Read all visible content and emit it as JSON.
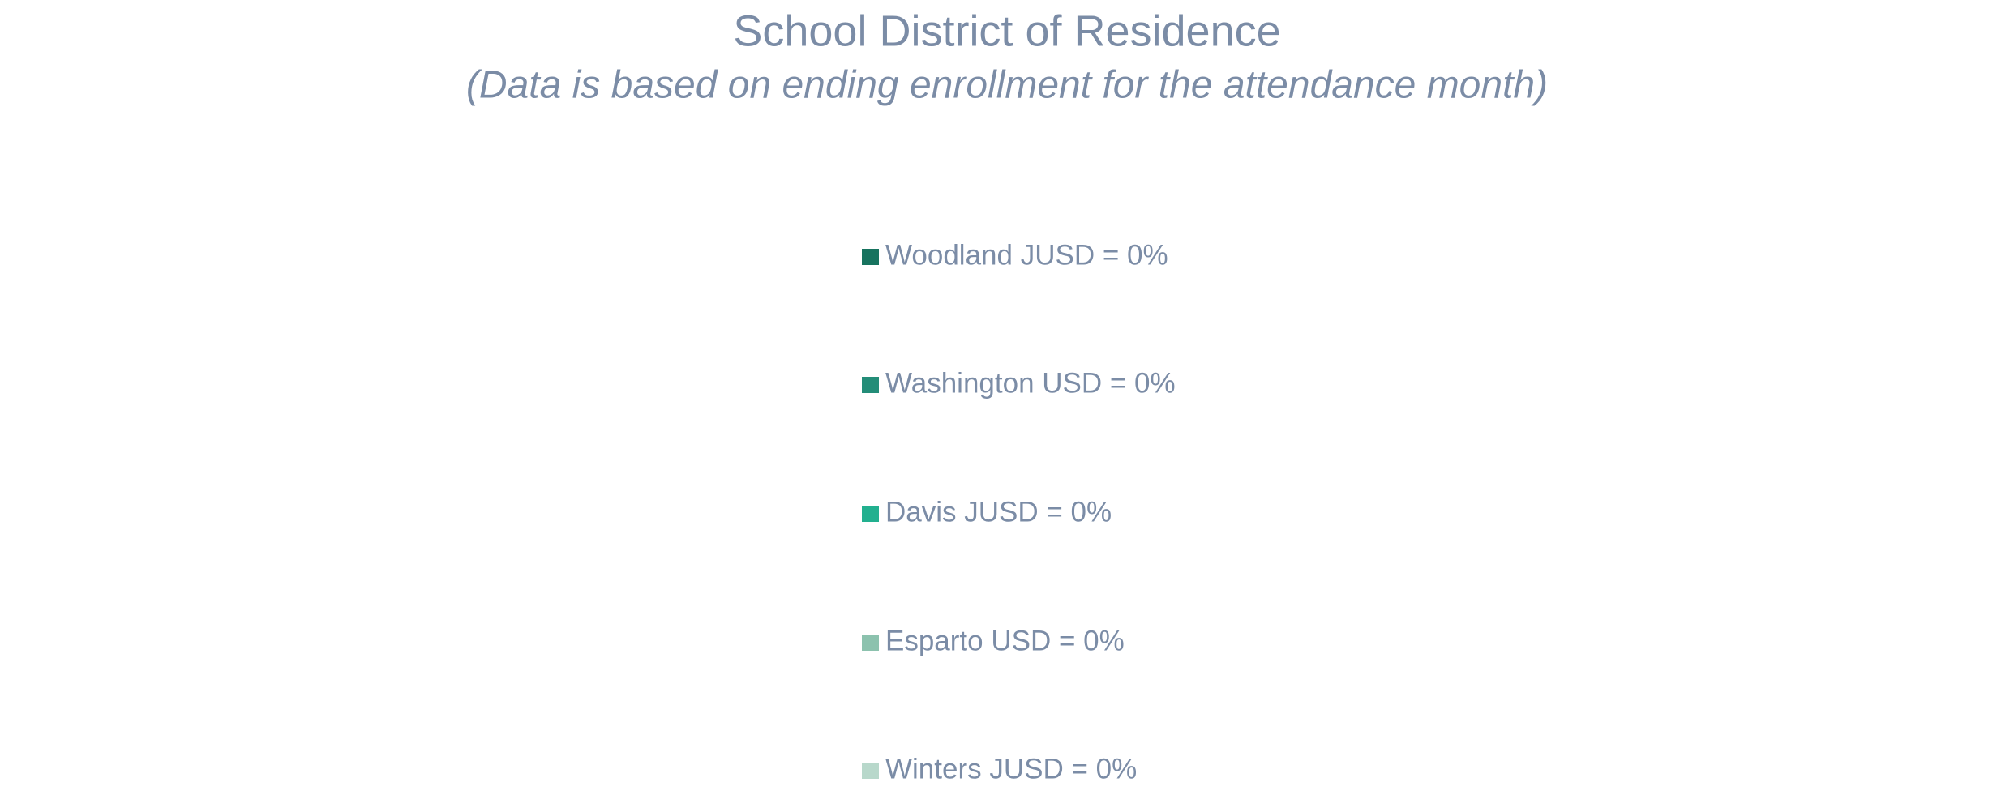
{
  "chart_data": {
    "type": "pie",
    "title": "School District of Residence",
    "subtitle": "(Data is based on ending enrollment for the attendance month)",
    "categories": [
      "Woodland JUSD = 0%",
      "Washington USD = 0%",
      "Davis JUSD = 0%",
      "Esparto USD = 0%",
      "Winters JUSD = 0%"
    ],
    "values": [
      0,
      0,
      0,
      0,
      0
    ],
    "colors": [
      "#17735f",
      "#238d78",
      "#22b08f",
      "#8cc2ae",
      "#b8d8cb"
    ],
    "legend": "center"
  }
}
